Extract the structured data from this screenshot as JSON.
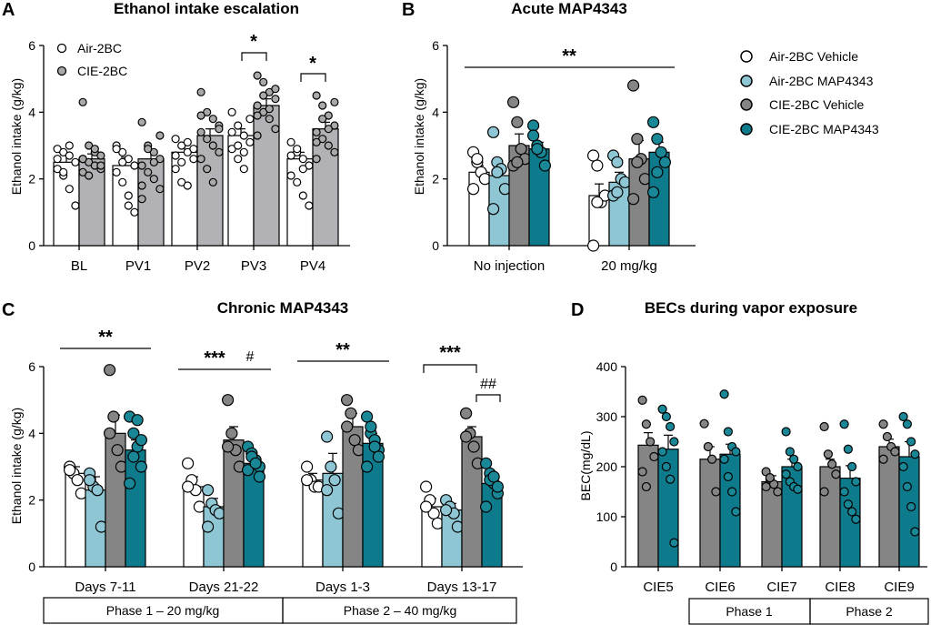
{
  "colors": {
    "white": "#ffffff",
    "light_blue": "#8fc6d4",
    "gray": "#858585",
    "teal": "#0e7b8c",
    "panelA_gray": "#b2b2b6",
    "axis": "#000000",
    "dot_gray": "#a9a9a9",
    "dot_teal": "#1a8797"
  },
  "chart_data": [
    {
      "panel": "A",
      "type": "bar",
      "title": "Ethanol intake escalation",
      "ylabel": "Ethanol intake (g/kg)",
      "xlabel": "",
      "ylim": [
        0,
        6
      ],
      "yticks": [
        "0",
        "2",
        "4",
        "6"
      ],
      "categories": [
        "BL",
        "PV1",
        "PV2",
        "PV3",
        "PV4"
      ],
      "series": [
        {
          "name": "Air-2BC",
          "color": "#ffffff",
          "values": [
            2.5,
            2.4,
            2.8,
            3.3,
            2.6
          ],
          "errors": [
            0.2,
            0.25,
            0.2,
            0.2,
            0.2
          ],
          "points": [
            [
              2.9,
              2.8,
              2.7,
              2.5,
              2.3,
              2.1,
              1.7,
              1.2,
              2.6,
              2.2,
              3.0
            ],
            [
              3.0,
              2.8,
              2.6,
              2.4,
              2.2,
              1.9,
              1.5,
              1.0,
              2.9,
              2.5,
              1.2
            ],
            [
              3.2,
              3.0,
              2.8,
              2.6,
              2.3,
              1.9,
              1.8,
              2.9,
              2.7,
              2.5,
              3.1
            ],
            [
              4.0,
              3.6,
              3.3,
              3.1,
              2.9,
              2.6,
              2.3,
              3.8,
              3.4,
              3.0,
              2.8
            ],
            [
              3.1,
              2.8,
              2.6,
              2.4,
              2.1,
              1.9,
              1.5,
              1.2,
              2.7,
              2.9,
              2.3
            ]
          ]
        },
        {
          "name": "CIE-2BC",
          "color": "#b2b2b6",
          "values": [
            2.6,
            2.6,
            3.3,
            4.2,
            3.5
          ],
          "errors": [
            0.15,
            0.2,
            0.2,
            0.2,
            0.2
          ],
          "points": [
            [
              4.3,
              3.0,
              2.8,
              2.7,
              2.6,
              2.5,
              2.4,
              2.3,
              2.2,
              2.1,
              2.9,
              2.4,
              2.6
            ],
            [
              3.7,
              3.0,
              2.8,
              2.6,
              2.4,
              2.2,
              2.0,
              1.7,
              1.4,
              2.9,
              2.5,
              3.3,
              1.8
            ],
            [
              4.6,
              4.0,
              3.8,
              3.6,
              3.4,
              3.2,
              3.0,
              2.8,
              2.6,
              2.3,
              1.9,
              3.5,
              3.9
            ],
            [
              5.1,
              4.9,
              4.6,
              4.4,
              4.2,
              4.0,
              3.8,
              3.5,
              3.3,
              4.5,
              4.1,
              4.7,
              3.9
            ],
            [
              4.5,
              4.2,
              3.9,
              3.6,
              3.4,
              3.2,
              3.0,
              2.8,
              2.6,
              3.8,
              3.5,
              4.3,
              3.1
            ]
          ]
        }
      ],
      "legend": [
        "Air-2BC",
        "CIE-2BC"
      ],
      "annotations": [
        {
          "text": "*",
          "between": "PV3"
        },
        {
          "text": "*",
          "between": "PV4"
        }
      ]
    },
    {
      "panel": "B",
      "type": "bar",
      "title": "Acute MAP4343",
      "ylabel": "Ethanol intake (g/kg)",
      "xlabel": "",
      "ylim": [
        0,
        6
      ],
      "yticks": [
        "0",
        "2",
        "4",
        "6"
      ],
      "categories": [
        "No injection",
        "20 mg/kg"
      ],
      "series": [
        {
          "name": "Air-2BC Vehicle",
          "color": "#ffffff",
          "values": [
            2.2,
            1.5
          ],
          "errors": [
            0.2,
            0.35
          ],
          "points": [
            [
              2.8,
              2.5,
              2.2,
              2.0,
              1.7,
              2.6
            ],
            [
              2.7,
              2.4,
              1.3,
              1.5,
              0.0,
              1.3
            ]
          ]
        },
        {
          "name": "Air-2BC MAP4343",
          "color": "#8fc6d4",
          "values": [
            2.1,
            1.9
          ],
          "errors": [
            0.35,
            0.3
          ],
          "points": [
            [
              3.4,
              2.5,
              2.3,
              1.7,
              1.1,
              2.2
            ],
            [
              2.7,
              2.5,
              2.0,
              1.9,
              1.5,
              1.6
            ]
          ]
        },
        {
          "name": "CIE-2BC Vehicle",
          "color": "#858585",
          "values": [
            3.0,
            2.6
          ],
          "errors": [
            0.35,
            0.55
          ],
          "points": [
            [
              4.3,
              3.7,
              2.9,
              2.6,
              2.4,
              2.5
            ],
            [
              4.8,
              3.2,
              2.6,
              2.0,
              1.4,
              2.5
            ]
          ]
        },
        {
          "name": "CIE-2BC MAP4343",
          "color": "#0e7b8c",
          "values": [
            2.9,
            2.8
          ],
          "errors": [
            0.2,
            0.3
          ],
          "points": [
            [
              3.6,
              3.0,
              2.8,
              2.4,
              3.3,
              2.9
            ],
            [
              3.7,
              3.2,
              2.8,
              2.5,
              1.6,
              2.2
            ]
          ]
        }
      ],
      "annotations": [
        {
          "text": "**",
          "between": "No injection – 20 mg/kg"
        }
      ]
    },
    {
      "panel": "C",
      "type": "bar",
      "title": "Chronic MAP4343",
      "ylabel": "Ethanol intake (g/kg)",
      "xlabel": "",
      "ylim": [
        0,
        6
      ],
      "yticks": [
        "0",
        "2",
        "4",
        "6"
      ],
      "categories": [
        "Days 7-11",
        "Days 21-22",
        "Days 1-3",
        "Days 13-17"
      ],
      "series": [
        {
          "name": "Air-2BC Vehicle",
          "color": "#ffffff",
          "values": [
            2.8,
            2.4,
            2.6,
            1.8
          ],
          "errors": [
            0.2,
            0.3,
            0.2,
            0.25
          ],
          "points": [
            [
              3.0,
              2.8,
              2.6,
              2.2,
              2.9
            ],
            [
              3.1,
              2.6,
              2.3,
              1.8,
              2.4
            ],
            [
              3.0,
              2.6,
              2.4,
              2.4,
              2.6
            ],
            [
              2.4,
              2.0,
              1.6,
              1.3,
              1.8
            ]
          ]
        },
        {
          "name": "Air-2BC MAP4343",
          "color": "#8fc6d4",
          "values": [
            2.3,
            1.8,
            2.8,
            1.7
          ],
          "errors": [
            0.4,
            0.25,
            0.6,
            0.2
          ],
          "points": [
            [
              2.8,
              2.4,
              2.3,
              1.2,
              2.6
            ],
            [
              2.3,
              1.9,
              1.7,
              1.6,
              1.2
            ],
            [
              3.9,
              3.0,
              2.6,
              1.6,
              2.3
            ],
            [
              2.0,
              1.8,
              1.6,
              1.2,
              1.7
            ]
          ]
        },
        {
          "name": "CIE-2BC Vehicle",
          "color": "#858585",
          "values": [
            4.0,
            3.8,
            4.2,
            3.9
          ],
          "errors": [
            0.55,
            0.4,
            0.4,
            0.3
          ],
          "points": [
            [
              5.9,
              4.5,
              3.5,
              3.0,
              4.0
            ],
            [
              5.0,
              4.0,
              3.5,
              3.0,
              3.6
            ],
            [
              5.0,
              4.6,
              3.8,
              3.5,
              4.2
            ],
            [
              4.6,
              4.0,
              3.6,
              3.1,
              3.9
            ]
          ]
        },
        {
          "name": "CIE-2BC MAP4343",
          "color": "#0e7b8c",
          "values": [
            3.5,
            3.1,
            3.7,
            2.5
          ],
          "errors": [
            0.3,
            0.15,
            0.3,
            0.25
          ],
          "points": [
            [
              4.5,
              4.0,
              3.6,
              3.0,
              2.5,
              3.3,
              4.4,
              3.8
            ],
            [
              3.6,
              3.4,
              3.2,
              3.0,
              2.9,
              3.3,
              3.1,
              2.7
            ],
            [
              4.5,
              4.0,
              3.8,
              3.5,
              3.0,
              4.2,
              3.6,
              3.3
            ],
            [
              3.1,
              2.8,
              2.5,
              2.2,
              1.8,
              2.6,
              2.7,
              2.4
            ]
          ]
        }
      ],
      "annotations": [
        {
          "text": "**",
          "between": "Days 7-11"
        },
        {
          "text": "***",
          "between": "Days 21-22"
        },
        {
          "text": "#",
          "between": "Days 21-22"
        },
        {
          "text": "**",
          "between": "Days 1-3"
        },
        {
          "text": "***",
          "between": "Days 13-17"
        },
        {
          "text": "##",
          "between": "Days 13-17"
        }
      ],
      "phases": [
        "Phase 1 – 20 mg/kg",
        "Phase 2 – 40 mg/kg"
      ]
    },
    {
      "panel": "D",
      "type": "bar",
      "title": "BECs during vapor exposure",
      "ylabel": "BEC(mg/dL)",
      "xlabel": "",
      "ylim": [
        0,
        400
      ],
      "yticks": [
        "0",
        "100",
        "200",
        "300",
        "400"
      ],
      "categories": [
        "CIE5",
        "CIE6",
        "CIE7",
        "CIE8",
        "CIE9"
      ],
      "series": [
        {
          "name": "CIE-2BC Vehicle",
          "color": "#858585",
          "values": [
            243,
            215,
            170,
            200,
            240
          ],
          "errors": [
            25,
            25,
            12,
            15,
            15
          ],
          "points": [
            [
              333,
              285,
              250,
              220,
              190,
              160
            ],
            [
              286,
              240,
              215,
              150
            ],
            [
              190,
              175,
              165,
              150,
              160,
              178
            ],
            [
              280,
              225,
              205,
              185,
              150
            ],
            [
              285,
              260,
              240,
              230,
              215
            ]
          ]
        },
        {
          "name": "CIE-2BC MAP4343",
          "color": "#0e7b8c",
          "values": [
            235,
            225,
            200,
            177,
            220
          ],
          "errors": [
            28,
            20,
            15,
            25,
            30
          ],
          "points": [
            [
              315,
              300,
              280,
              250,
              230,
              200,
              175,
              48
            ],
            [
              345,
              270,
              240,
              230,
              215,
              180,
              150,
              110
            ],
            [
              270,
              230,
              215,
              200,
              185,
              170,
              160,
              155
            ],
            [
              285,
              235,
              200,
              170,
              150,
              125,
              110,
              95
            ],
            [
              300,
              285,
              250,
              225,
              200,
              160,
              120,
              70
            ]
          ]
        }
      ],
      "phases": [
        "Phase 1",
        "Phase 2"
      ]
    }
  ],
  "legend_B": [
    "Air-2BC Vehicle",
    "Air-2BC MAP4343",
    "CIE-2BC Vehicle",
    "CIE-2BC MAP4343"
  ]
}
